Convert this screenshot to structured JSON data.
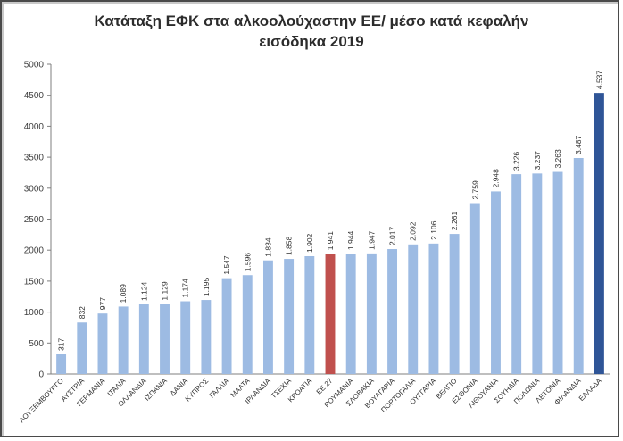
{
  "chart_data": {
    "type": "bar",
    "title_line1": "Κατάταξη ΕΦΚ στα αλκοολούχαστην ΕΕ/ μέσο κατά κεφαλήν",
    "title_line2": "εισόδηκα 2019",
    "ylim": [
      0,
      5000
    ],
    "ytick_step": 500,
    "grid": false,
    "categories": [
      "ΛΟΥΞΕΜΒΟΥΡΓΟ",
      "ΑΥΣΤΡΙΑ",
      "ΓΕΡΜΑΝΙΑ",
      "ΙΤΑΛΙΑ",
      "ΟΛΛΑΝΔΙΑ",
      "ΙΣΠΑΝΙΑ",
      "ΔΑΝΙΑ",
      "ΚΥΠΡΟΣ",
      "ΓΑΛΛΙΑ",
      "ΜΑΛΤΑ",
      "ΙΡΛΑΝΔΙΑ",
      "ΤΣΕΧΙΑ",
      "ΚΡΟΑΤΙΑ",
      "ΕΕ 27",
      "ΡΟΥΜΑΝΙΑ",
      "ΣΛΟΒΑΚΙΑ",
      "ΒΟΥΛΓΑΡΙΑ",
      "ΠΟΡΤΟΓΑΛΙΑ",
      "ΟΥΓΓΑΡΙΑ",
      "ΒΕΛΓΙΟ",
      "ΕΣΘΟΝΙΑ",
      "ΛΙΘΟΥΑΝΙΑ",
      "ΣΟΥΗΔΙΑ",
      "ΠΟΛΩΝΙΑ",
      "ΛΕΤΟΝΙΑ",
      "ΦΙΛΑΝΔΙΑ",
      "ΕΛΛΑΔΑ"
    ],
    "values": [
      317,
      832,
      977,
      1089,
      1124,
      1129,
      1174,
      1195,
      1547,
      1596,
      1834,
      1858,
      1902,
      1941,
      1944,
      1947,
      2017,
      2092,
      2106,
      2261,
      2759,
      2948,
      3226,
      3237,
      3263,
      3487,
      4537
    ],
    "value_labels": [
      "317",
      "832",
      "977",
      "1.089",
      "1.124",
      "1.129",
      "1.174",
      "1.195",
      "1.547",
      "1.596",
      "1.834",
      "1.858",
      "1.902",
      "1.941",
      "1.944",
      "1.947",
      "2.017",
      "2.092",
      "2.106",
      "2.261",
      "2.759",
      "2.948",
      "3.226",
      "3.237",
      "3.263",
      "3.487",
      "4.537"
    ],
    "colors": {
      "default": "#9dbbe3",
      "highlight_eu": "#c0504d",
      "highlight_greece": "#2f5597",
      "axis": "#7f7f7f"
    }
  }
}
